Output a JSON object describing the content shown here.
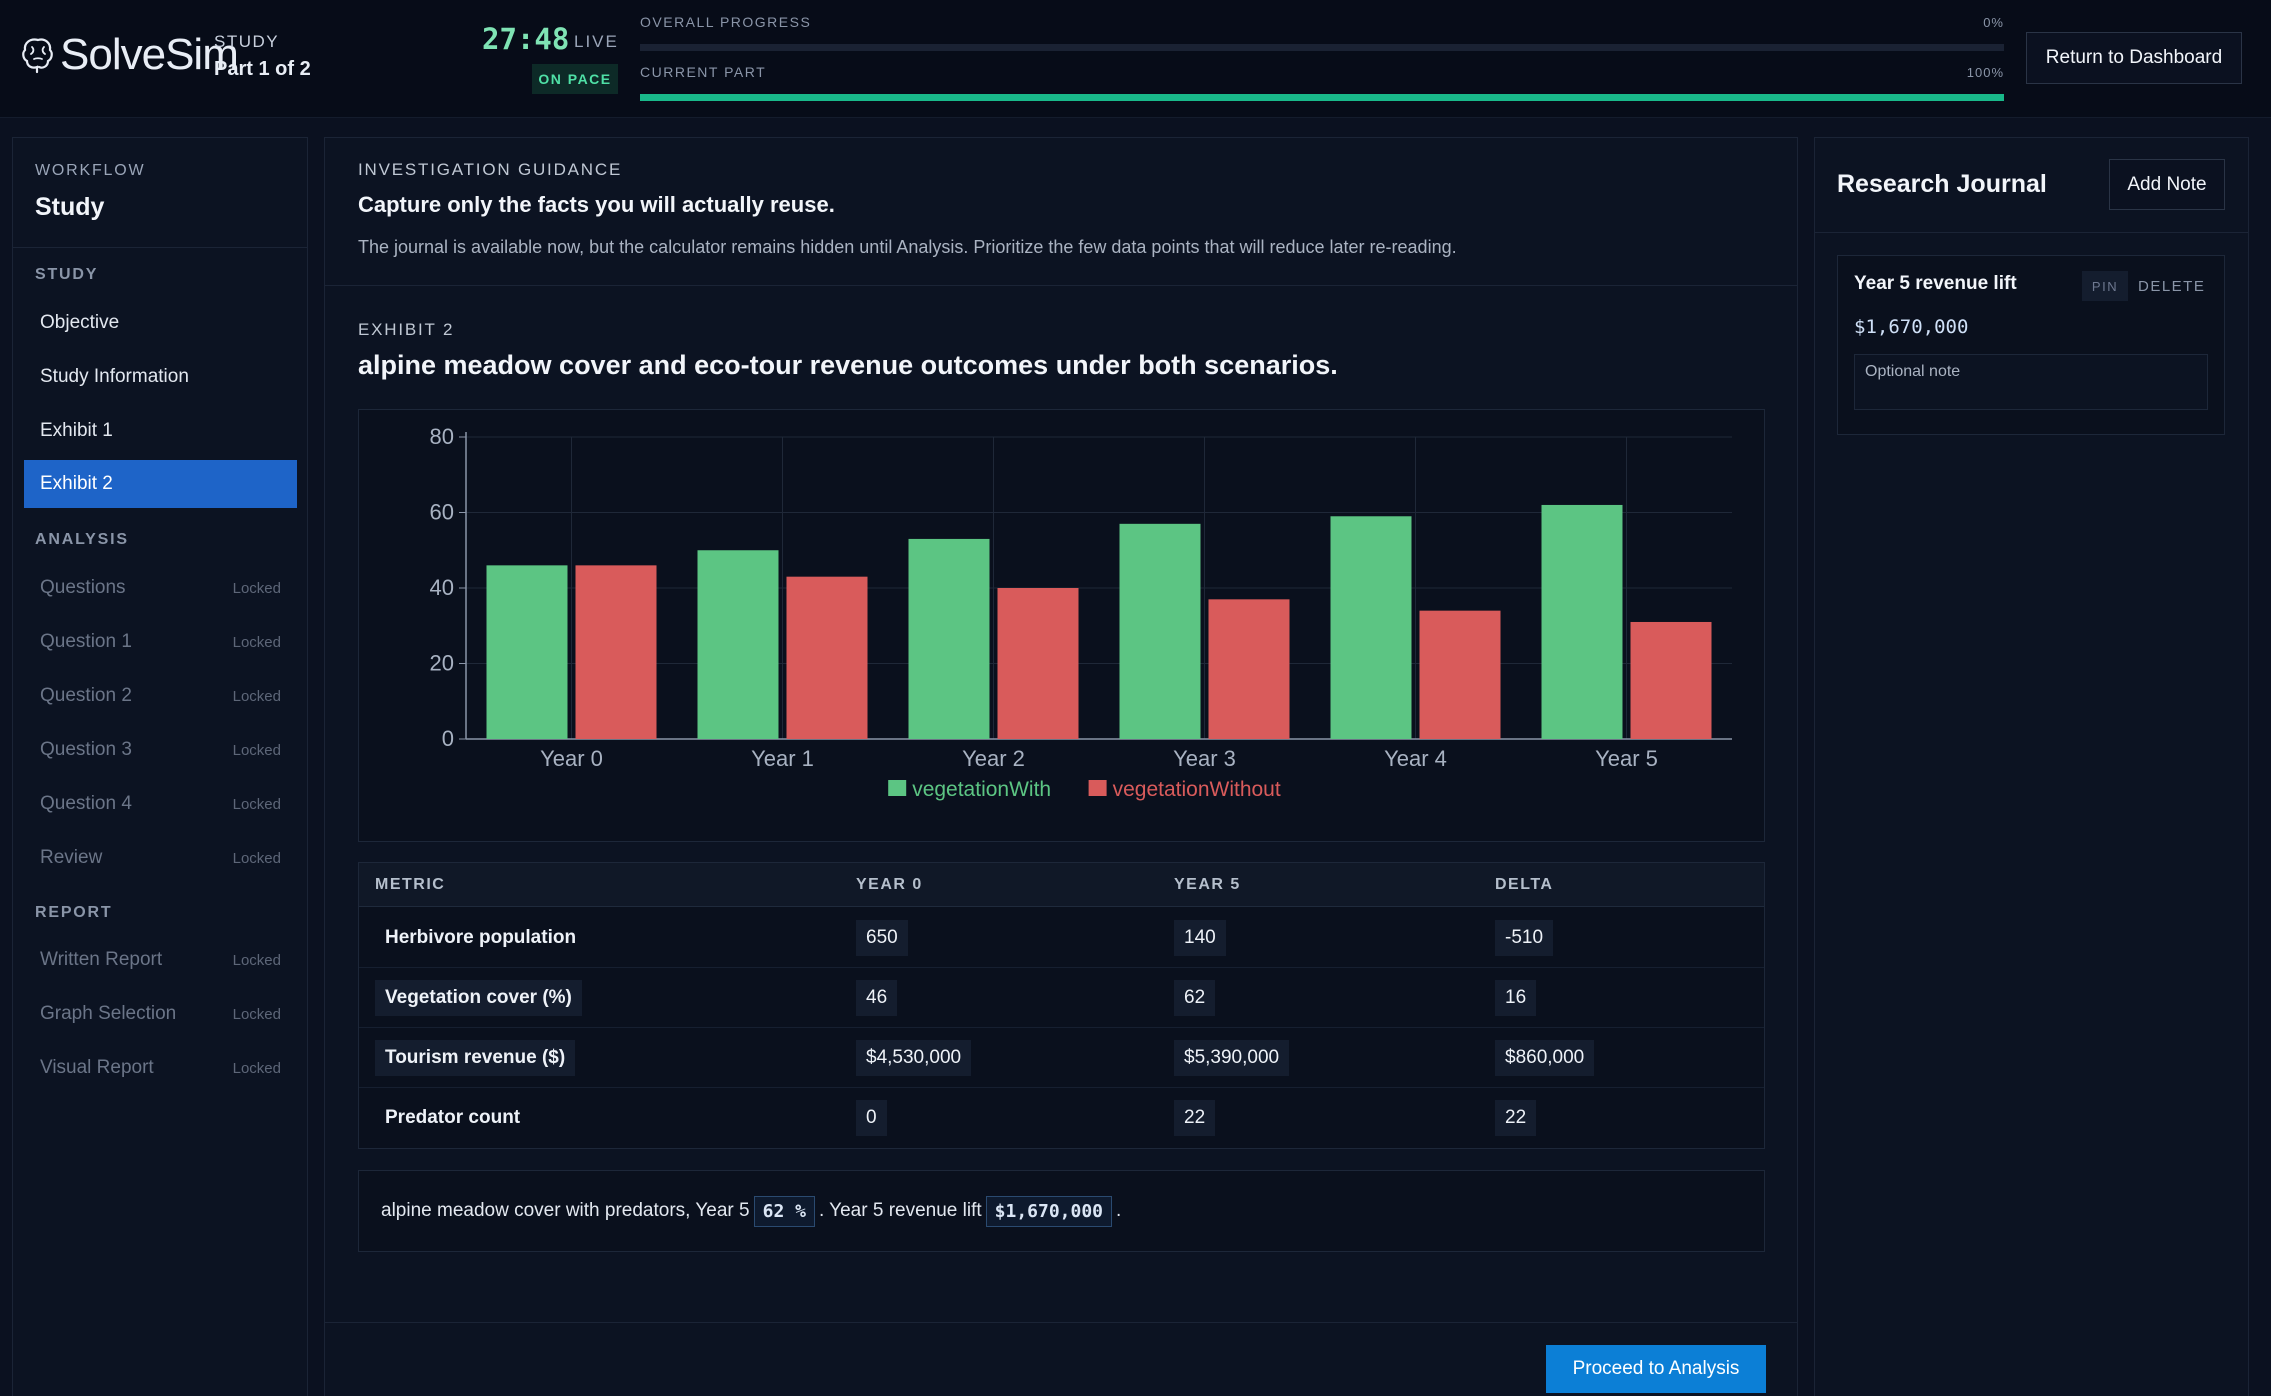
{
  "header": {
    "logo_text": "SolveSim",
    "study_label": "STUDY",
    "part_label": "Part 1 of 2",
    "timer": "27:48",
    "live_label": "LIVE",
    "pace_badge": "ON PACE",
    "overall_label": "OVERALL PROGRESS",
    "overall_pct": "0%",
    "overall_value": 0,
    "current_label": "CURRENT PART",
    "current_pct": "100%",
    "current_value": 100,
    "return_button": "Return to Dashboard"
  },
  "sidebar": {
    "workflow_label": "WORKFLOW",
    "workflow_title": "Study",
    "sections": [
      {
        "label": "STUDY",
        "items": [
          {
            "label": "Objective",
            "state": "normal"
          },
          {
            "label": "Study Information",
            "state": "normal"
          },
          {
            "label": "Exhibit 1",
            "state": "normal"
          },
          {
            "label": "Exhibit 2",
            "state": "active"
          }
        ]
      },
      {
        "label": "ANALYSIS",
        "items": [
          {
            "label": "Questions",
            "state": "locked",
            "lock": "Locked"
          },
          {
            "label": "Question 1",
            "state": "locked",
            "lock": "Locked"
          },
          {
            "label": "Question 2",
            "state": "locked",
            "lock": "Locked"
          },
          {
            "label": "Question 3",
            "state": "locked",
            "lock": "Locked"
          },
          {
            "label": "Question 4",
            "state": "locked",
            "lock": "Locked"
          },
          {
            "label": "Review",
            "state": "locked",
            "lock": "Locked"
          }
        ]
      },
      {
        "label": "REPORT",
        "items": [
          {
            "label": "Written Report",
            "state": "locked",
            "lock": "Locked"
          },
          {
            "label": "Graph Selection",
            "state": "locked",
            "lock": "Locked"
          },
          {
            "label": "Visual Report",
            "state": "locked",
            "lock": "Locked"
          }
        ]
      }
    ]
  },
  "guidance": {
    "label": "INVESTIGATION GUIDANCE",
    "title": "Capture only the facts you will actually reuse.",
    "text": "The journal is available now, but the calculator remains hidden until Analysis. Prioritize the few data points that will reduce later re-reading."
  },
  "exhibit": {
    "label": "EXHIBIT 2",
    "title": "alpine meadow cover and eco-tour revenue outcomes under both scenarios."
  },
  "chart_data": {
    "type": "bar",
    "categories": [
      "Year 0",
      "Year 1",
      "Year 2",
      "Year 3",
      "Year 4",
      "Year 5"
    ],
    "series": [
      {
        "name": "vegetationWith",
        "color": "#5cc583",
        "values": [
          46,
          50,
          53,
          57,
          59,
          62
        ]
      },
      {
        "name": "vegetationWithout",
        "color": "#d95b5b",
        "values": [
          46,
          43,
          40,
          37,
          34,
          31
        ]
      }
    ],
    "y_ticks": [
      0,
      20,
      40,
      60,
      80
    ],
    "ylim": [
      0,
      80
    ],
    "grid": true,
    "legend_position": "bottom-center"
  },
  "table": {
    "headers": [
      "METRIC",
      "YEAR 0",
      "YEAR 5",
      "DELTA"
    ],
    "rows": [
      {
        "metric": "Herbivore population",
        "highlight": false,
        "y0": "650",
        "y5": "140",
        "delta": "-510"
      },
      {
        "metric": "Vegetation cover (%)",
        "highlight": true,
        "y0": "46",
        "y5": "62",
        "delta": "16"
      },
      {
        "metric": "Tourism revenue ($)",
        "highlight": true,
        "y0": "$4,530,000",
        "y5": "$5,390,000",
        "delta": "$860,000"
      },
      {
        "metric": "Predator count",
        "highlight": false,
        "y0": "0",
        "y5": "22",
        "delta": "22"
      }
    ]
  },
  "summary": {
    "text1": "alpine meadow cover with predators, Year 5",
    "value1": "62 %",
    "text2": ". Year 5 revenue lift",
    "value2": "$1,670,000",
    "text3": "."
  },
  "proceed_button": "Proceed to Analysis",
  "journal": {
    "title": "Research Journal",
    "add_button": "Add Note",
    "notes": [
      {
        "title": "Year 5 revenue lift",
        "value": "$1,670,000",
        "pin": "PIN",
        "delete": "DELETE",
        "placeholder": "Optional note"
      }
    ]
  }
}
